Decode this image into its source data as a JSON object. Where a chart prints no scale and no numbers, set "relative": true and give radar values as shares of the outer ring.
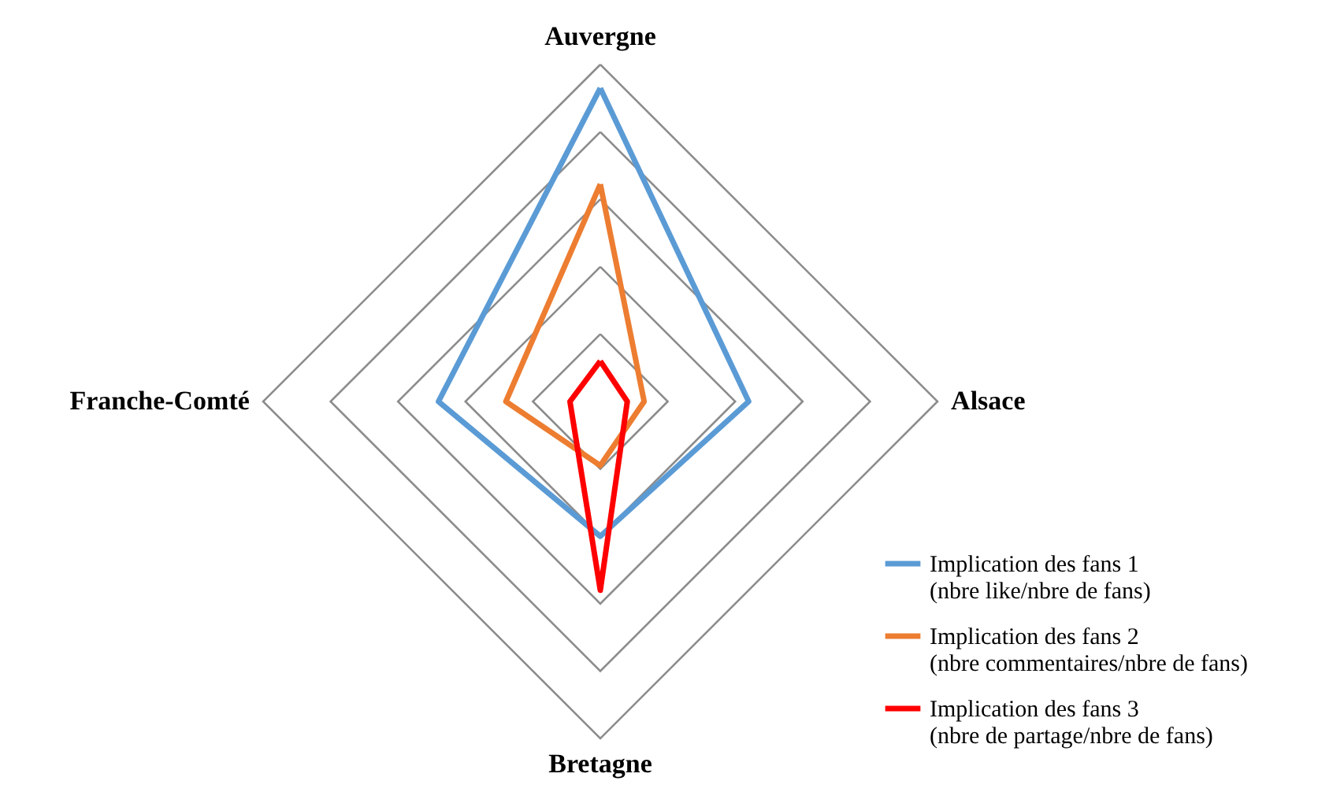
{
  "chart_data": {
    "type": "radar",
    "relative": true,
    "grid": true,
    "legend": "bottom right",
    "categories": [
      "Auvergne",
      "Alsace",
      "Bretagne",
      "Franche-Comté"
    ],
    "series": [
      {
        "name": "Implication des fans 1  (nbre like/nbre de fans)",
        "color": "#5b9bd5",
        "values": [
          0.93,
          0.44,
          0.4,
          0.48
        ]
      },
      {
        "name": "Implication des fans 2 (nbre commentaires/nbre de fans)",
        "color": "#ed7d31",
        "values": [
          0.645,
          0.13,
          0.19,
          0.28
        ]
      },
      {
        "name": "Implication des fans 3 (nbre de partage/nbre de fans)",
        "color": "#ff0000",
        "values": [
          0.12,
          0.08,
          0.56,
          0.09
        ]
      }
    ]
  }
}
